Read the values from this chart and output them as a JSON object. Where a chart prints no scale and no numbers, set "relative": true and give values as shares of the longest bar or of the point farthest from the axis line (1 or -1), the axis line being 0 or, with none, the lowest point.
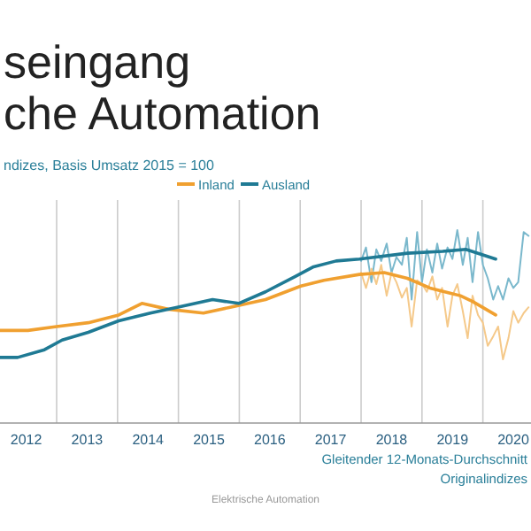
{
  "chart_data": {
    "type": "line",
    "title": "seingang\nche Automation",
    "subtitle": "ndizes, Basis Umsatz 2015 = 100",
    "relative": true,
    "grid": "x",
    "legend": "top",
    "xlim": [
      2012.07,
      2020.79
    ],
    "xticks": [
      {
        "value": 2012.5,
        "label": "2012"
      },
      {
        "value": 2013,
        "label": null
      },
      {
        "value": 2013.5,
        "label": "2013"
      },
      {
        "value": 2014,
        "label": null
      },
      {
        "value": 2014.5,
        "label": "2014"
      },
      {
        "value": 2015,
        "label": null
      },
      {
        "value": 2015.5,
        "label": "2015"
      },
      {
        "value": 2016,
        "label": null
      },
      {
        "value": 2016.5,
        "label": "2016"
      },
      {
        "value": 2017,
        "label": null
      },
      {
        "value": 2017.5,
        "label": "2017"
      },
      {
        "value": 2018,
        "label": null
      },
      {
        "value": 2018.5,
        "label": "2018"
      },
      {
        "value": 2019,
        "label": null
      },
      {
        "value": 2019.5,
        "label": "2019"
      },
      {
        "value": 2020,
        "label": null
      },
      {
        "value": 2020.5,
        "label": "2020"
      }
    ],
    "series": [
      {
        "color": "#7ab8cc",
        "x": [
          2018.0,
          2018.08,
          2018.17,
          2018.25,
          2018.33,
          2018.42,
          2018.5,
          2018.58,
          2018.67,
          2018.75,
          2018.83,
          2018.92,
          2019.0,
          2019.08,
          2019.17,
          2019.25,
          2019.33,
          2019.42,
          2019.5,
          2019.58,
          2019.67,
          2019.75,
          2019.83,
          2019.92,
          2020.0,
          2020.08,
          2020.17,
          2020.25,
          2020.33,
          2020.42,
          2020.5,
          2020.58,
          2020.67,
          2020.75
        ],
        "values": [
          0.84,
          0.91,
          0.73,
          0.9,
          0.84,
          0.93,
          0.78,
          0.86,
          0.82,
          0.96,
          0.64,
          0.99,
          0.73,
          0.9,
          0.78,
          0.93,
          0.8,
          0.91,
          0.85,
          1.0,
          0.82,
          0.96,
          0.73,
          0.99,
          0.82,
          0.75,
          0.64,
          0.71,
          0.64,
          0.75,
          0.7,
          0.73,
          0.99,
          0.97
        ]
      },
      {
        "color": "#f5c98a",
        "x": [
          2018.0,
          2018.08,
          2018.17,
          2018.25,
          2018.33,
          2018.42,
          2018.5,
          2018.58,
          2018.67,
          2018.75,
          2018.83,
          2018.92,
          2019.0,
          2019.08,
          2019.17,
          2019.25,
          2019.33,
          2019.42,
          2019.5,
          2019.58,
          2019.67,
          2019.75,
          2019.83,
          2019.92,
          2020.0,
          2020.08,
          2020.17,
          2020.25,
          2020.33,
          2020.42,
          2020.5,
          2020.58,
          2020.67,
          2020.75
        ],
        "values": [
          0.78,
          0.7,
          0.8,
          0.72,
          0.82,
          0.66,
          0.78,
          0.73,
          0.65,
          0.7,
          0.5,
          0.74,
          0.72,
          0.68,
          0.76,
          0.64,
          0.7,
          0.5,
          0.66,
          0.72,
          0.58,
          0.44,
          0.66,
          0.56,
          0.52,
          0.4,
          0.45,
          0.5,
          0.33,
          0.44,
          0.58,
          0.52,
          0.57,
          0.6
        ]
      },
      {
        "name": "Inland",
        "color": "#f0a030",
        "x": [
          2012.07,
          2012.53,
          2013.0,
          2013.52,
          2014.02,
          2014.4,
          2014.83,
          2015.41,
          2015.85,
          2016.43,
          2017.01,
          2017.39,
          2017.97,
          2018.38,
          2018.76,
          2019.13,
          2019.63,
          2019.83,
          2020.21
        ],
        "values": [
          0.48,
          0.48,
          0.5,
          0.52,
          0.56,
          0.62,
          0.59,
          0.57,
          0.6,
          0.64,
          0.71,
          0.74,
          0.77,
          0.78,
          0.75,
          0.7,
          0.66,
          0.63,
          0.56
        ]
      },
      {
        "name": "Ausland",
        "color": "#1f7a94",
        "x": [
          2012.07,
          2012.36,
          2012.8,
          2013.09,
          2013.52,
          2014.02,
          2014.54,
          2014.98,
          2015.56,
          2015.99,
          2016.43,
          2016.92,
          2017.22,
          2017.59,
          2017.97,
          2018.76,
          2019.34,
          2019.72,
          2019.92,
          2020.21
        ],
        "values": [
          0.34,
          0.34,
          0.38,
          0.43,
          0.47,
          0.53,
          0.57,
          0.6,
          0.64,
          0.62,
          0.68,
          0.76,
          0.81,
          0.84,
          0.85,
          0.88,
          0.89,
          0.9,
          0.88,
          0.85
        ]
      }
    ],
    "annotations": [
      "Gleitender 12-Monats-Durchschnitt",
      "Originalindizes",
      "Elektrische Automation"
    ]
  }
}
